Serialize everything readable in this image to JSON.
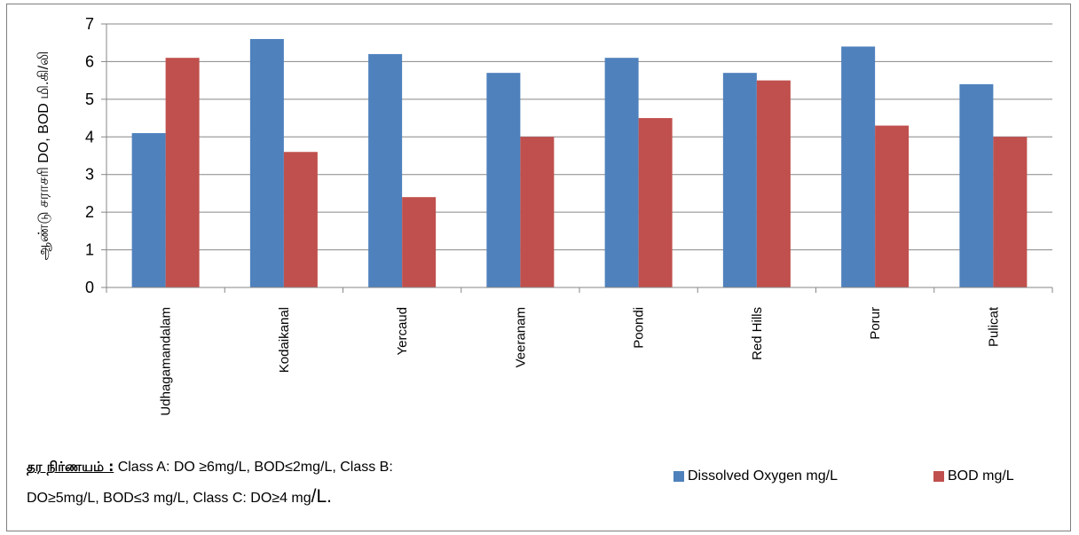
{
  "chart_data": {
    "type": "bar",
    "categories": [
      "Udhagamandalam",
      "Kodaikanal",
      "Yercaud",
      "Veeranam",
      "Poondi",
      "Red Hills",
      "Porur",
      "Pulicat"
    ],
    "series": [
      {
        "name": "Dissolved Oxygen  mg/L",
        "color": "#4f81bd",
        "values": [
          4.1,
          6.6,
          6.2,
          5.7,
          6.1,
          5.7,
          6.4,
          5.4
        ]
      },
      {
        "name": "BOD mg/L",
        "color": "#c0504d",
        "values": [
          6.1,
          3.6,
          2.4,
          4.0,
          4.5,
          5.5,
          4.3,
          4.0
        ]
      }
    ],
    "ylabel": "ஆண்டு சராசரி DO, BOD மி.கி/லி",
    "ylim": [
      0,
      7
    ],
    "yticks": [
      "0",
      "1",
      "2",
      "3",
      "4",
      "5",
      "6",
      "7"
    ],
    "grid": true,
    "legend_position": "bottom-right"
  },
  "note": {
    "heading": "தர நிர்ணயம் :",
    "line1": " Class  A: DO ≥6mg/L, BOD≤2mg/L, Class B:",
    "line2": "DO≥5mg/L, BOD≤3 mg/L, Class C: DO≥4 mg",
    "line2_unit": "/L."
  }
}
